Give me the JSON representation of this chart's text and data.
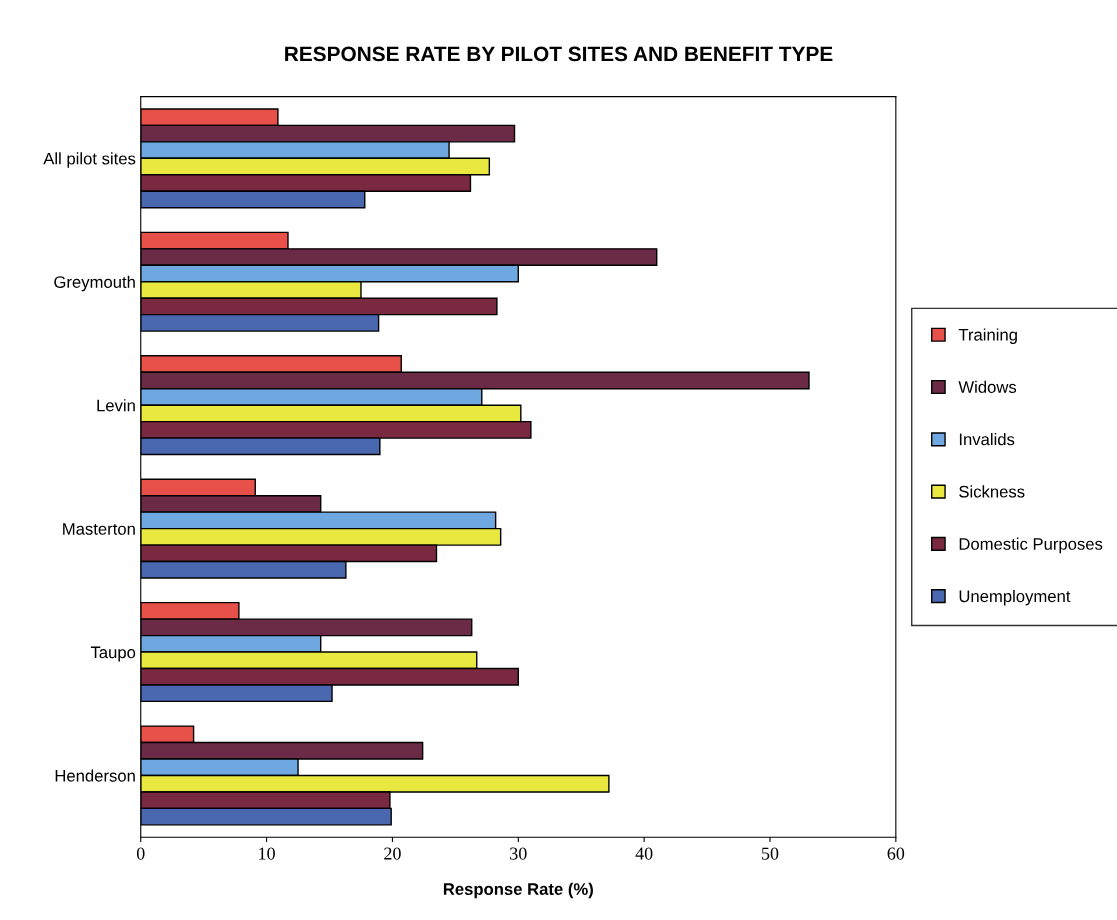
{
  "chart_data": {
    "type": "bar",
    "orientation": "horizontal",
    "title": "RESPONSE RATE BY PILOT SITES AND BENEFIT TYPE",
    "xlabel": "Response Rate (%)",
    "categories": [
      "All pilot sites",
      "Greymouth",
      "Levin",
      "Masterton",
      "Taupo",
      "Henderson"
    ],
    "series": [
      {
        "name": "Training",
        "color": "#e8504a",
        "values": [
          10.9,
          11.7,
          20.7,
          9.1,
          7.8,
          4.2
        ]
      },
      {
        "name": "Widows",
        "color": "#6b2a45",
        "values": [
          29.7,
          41.0,
          53.1,
          14.3,
          26.3,
          22.4
        ]
      },
      {
        "name": "Invalids",
        "color": "#6fa8e0",
        "values": [
          24.5,
          30.0,
          27.1,
          28.2,
          14.3,
          12.5
        ]
      },
      {
        "name": "Sickness",
        "color": "#e8e840",
        "values": [
          27.7,
          17.5,
          30.2,
          28.6,
          26.7,
          37.2
        ]
      },
      {
        "name": "Domestic Purposes",
        "color": "#7a2a40",
        "values": [
          26.2,
          28.3,
          31.0,
          23.5,
          30.0,
          19.8
        ]
      },
      {
        "name": "Unemployment",
        "color": "#4a68b0",
        "values": [
          17.8,
          18.9,
          19.0,
          16.3,
          15.2,
          19.9
        ]
      }
    ],
    "xlim": [
      0,
      60
    ],
    "xticks": [
      0,
      10,
      20,
      30,
      40,
      50,
      60
    ],
    "grid": false,
    "legend": "right"
  }
}
